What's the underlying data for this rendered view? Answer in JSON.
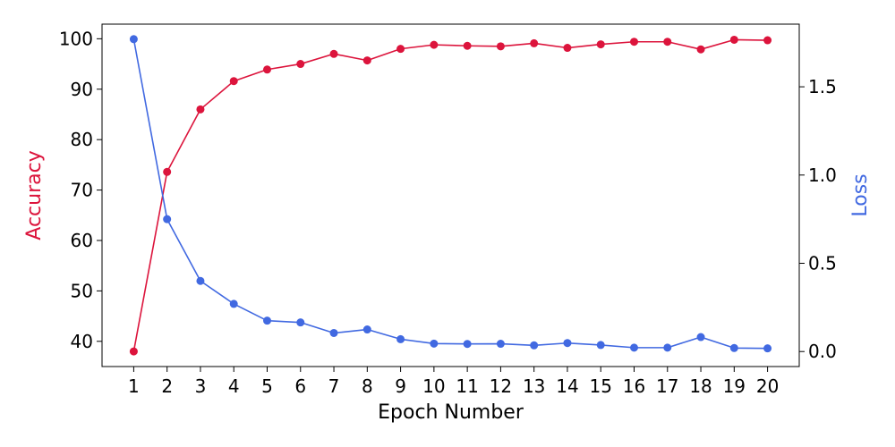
{
  "chart_data": {
    "type": "line",
    "title": "",
    "xlabel": "Epoch Number",
    "ylabel_left": "Accuracy",
    "ylabel_right": "Loss",
    "x": [
      1,
      2,
      3,
      4,
      5,
      6,
      7,
      8,
      9,
      10,
      11,
      12,
      13,
      14,
      15,
      16,
      17,
      18,
      19,
      20
    ],
    "x_tick_labels": [
      "1",
      "2",
      "3",
      "4",
      "5",
      "6",
      "7",
      "8",
      "9",
      "10",
      "11",
      "12",
      "13",
      "14",
      "15",
      "16",
      "17",
      "18",
      "19",
      "20"
    ],
    "xlim": [
      0.05,
      20.95
    ],
    "ylim_left": [
      35,
      102.9
    ],
    "ylim_right": [
      -0.085,
      1.855
    ],
    "yticks_left": [
      40,
      50,
      60,
      70,
      80,
      90,
      100
    ],
    "yticks_left_labels": [
      "40",
      "50",
      "60",
      "70",
      "80",
      "90",
      "100"
    ],
    "yticks_right": [
      0.0,
      0.5,
      1.0,
      1.5
    ],
    "yticks_right_labels": [
      "0.0",
      "0.5",
      "1.0",
      "1.5"
    ],
    "grid": false,
    "legend": "none",
    "series": [
      {
        "axis": "left",
        "color": "#dc143c",
        "values": [
          38.0,
          73.6,
          86.0,
          91.6,
          93.9,
          95.0,
          97.0,
          95.7,
          98.0,
          98.8,
          98.6,
          98.5,
          99.1,
          98.2,
          98.9,
          99.4,
          99.4,
          97.9,
          99.8,
          99.7
        ]
      },
      {
        "axis": "right",
        "color": "#4169e1",
        "values": [
          1.77,
          0.75,
          0.4,
          0.27,
          0.175,
          0.165,
          0.105,
          0.125,
          0.07,
          0.045,
          0.043,
          0.044,
          0.035,
          0.048,
          0.037,
          0.022,
          0.022,
          0.082,
          0.02,
          0.018
        ]
      }
    ]
  }
}
